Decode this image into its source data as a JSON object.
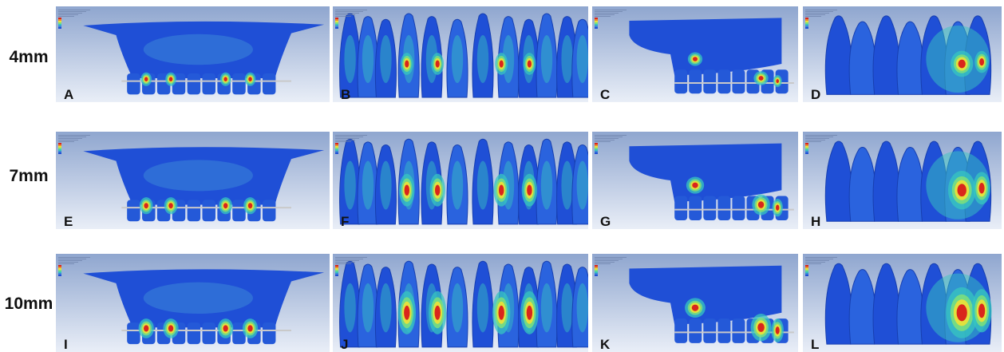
{
  "rows": [
    {
      "label": "4mm",
      "intensity": 0.35
    },
    {
      "label": "7mm",
      "intensity": 0.7
    },
    {
      "label": "10mm",
      "intensity": 1.0
    }
  ],
  "panels": [
    {
      "letter": "A",
      "view": "frontal-maxilla"
    },
    {
      "letter": "B",
      "view": "teeth-front"
    },
    {
      "letter": "C",
      "view": "lateral-maxilla"
    },
    {
      "letter": "D",
      "view": "teeth-side"
    },
    {
      "letter": "E",
      "view": "frontal-maxilla"
    },
    {
      "letter": "F",
      "view": "teeth-front"
    },
    {
      "letter": "G",
      "view": "lateral-maxilla"
    },
    {
      "letter": "H",
      "view": "teeth-side"
    },
    {
      "letter": "I",
      "view": "frontal-maxilla"
    },
    {
      "letter": "J",
      "view": "teeth-front"
    },
    {
      "letter": "K",
      "view": "lateral-maxilla"
    },
    {
      "letter": "L",
      "view": "teeth-side"
    }
  ],
  "colors": {
    "background_top": "#8fa6cf",
    "background_bottom": "#e9eef7",
    "low_stress": "#1f4fd6",
    "mid_stress": "#37c6c0",
    "high_stress": "#e8e23a",
    "peak_stress": "#d9261c"
  }
}
